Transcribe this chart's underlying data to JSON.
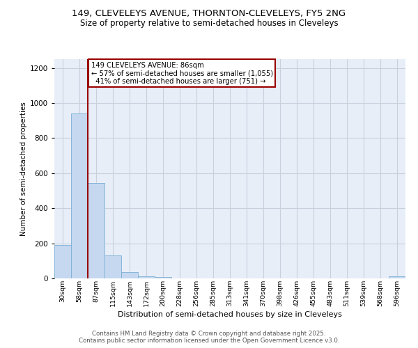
{
  "title_line1": "149, CLEVELEYS AVENUE, THORNTON-CLEVELEYS, FY5 2NG",
  "title_line2": "Size of property relative to semi-detached houses in Cleveleys",
  "xlabel": "Distribution of semi-detached houses by size in Cleveleys",
  "ylabel": "Number of semi-detached properties",
  "categories": [
    "30sqm",
    "58sqm",
    "87sqm",
    "115sqm",
    "143sqm",
    "172sqm",
    "200sqm",
    "228sqm",
    "256sqm",
    "285sqm",
    "313sqm",
    "341sqm",
    "370sqm",
    "398sqm",
    "426sqm",
    "455sqm",
    "483sqm",
    "511sqm",
    "539sqm",
    "568sqm",
    "596sqm"
  ],
  "values": [
    192,
    940,
    543,
    130,
    36,
    12,
    8,
    0,
    0,
    0,
    0,
    0,
    0,
    0,
    0,
    0,
    0,
    0,
    0,
    0,
    10
  ],
  "bar_color": "#c5d8ef",
  "bar_edge_color": "#7aafd4",
  "property_label": "149 CLEVELEYS AVENUE: 86sqm",
  "smaller_pct": 57,
  "smaller_count": 1055,
  "larger_pct": 41,
  "larger_count": 751,
  "vline_color": "#990000",
  "annotation_box_color": "#990000",
  "vline_x_index": 1.5,
  "ylim": [
    0,
    1250
  ],
  "yticks": [
    0,
    200,
    400,
    600,
    800,
    1000,
    1200
  ],
  "grid_color": "#c8d0de",
  "bg_color": "#e8eef8",
  "footer_line1": "Contains HM Land Registry data © Crown copyright and database right 2025.",
  "footer_line2": "Contains public sector information licensed under the Open Government Licence v3.0."
}
